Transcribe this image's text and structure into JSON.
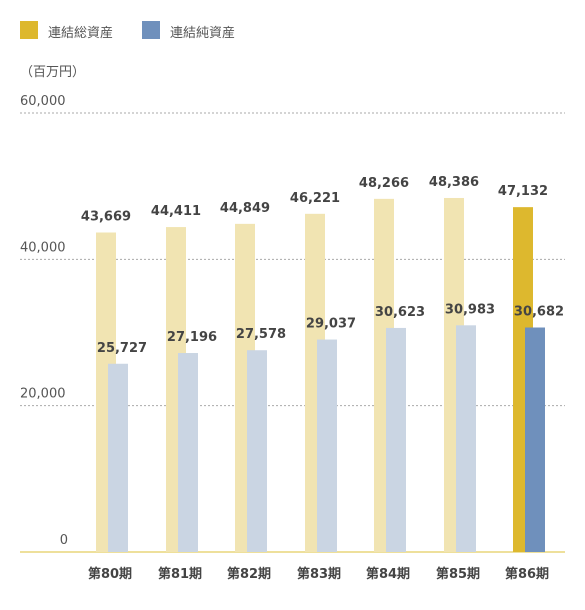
{
  "chart_data": {
    "type": "bar",
    "unit_label": "（百万円）",
    "categories": [
      "第80期",
      "第81期",
      "第82期",
      "第83期",
      "第84期",
      "第85期",
      "第86期"
    ],
    "series": [
      {
        "name": "連結総資産",
        "values": [
          43669,
          44411,
          44849,
          46221,
          48266,
          48386,
          47132
        ],
        "value_labels": [
          "43,669",
          "44,411",
          "44,849",
          "46,221",
          "48,266",
          "48,386",
          "47,132"
        ],
        "color": "#DDB82E",
        "color_faded": "#F1E4B2"
      },
      {
        "name": "連結純資産",
        "values": [
          25727,
          27196,
          27578,
          29037,
          30623,
          30983,
          30682
        ],
        "value_labels": [
          "25,727",
          "27,196",
          "27,578",
          "29,037",
          "30,623",
          "30,983",
          "30,682"
        ],
        "color": "#6F90BC",
        "color_faded": "#CAD5E3"
      }
    ],
    "highlight_index": 6,
    "y_ticks": [
      0,
      20000,
      40000,
      60000
    ],
    "y_tick_labels": [
      "0",
      "20,000",
      "40,000",
      "60,000"
    ],
    "ylim": [
      0,
      60000
    ],
    "grid": true,
    "legend_position": "top-left"
  }
}
